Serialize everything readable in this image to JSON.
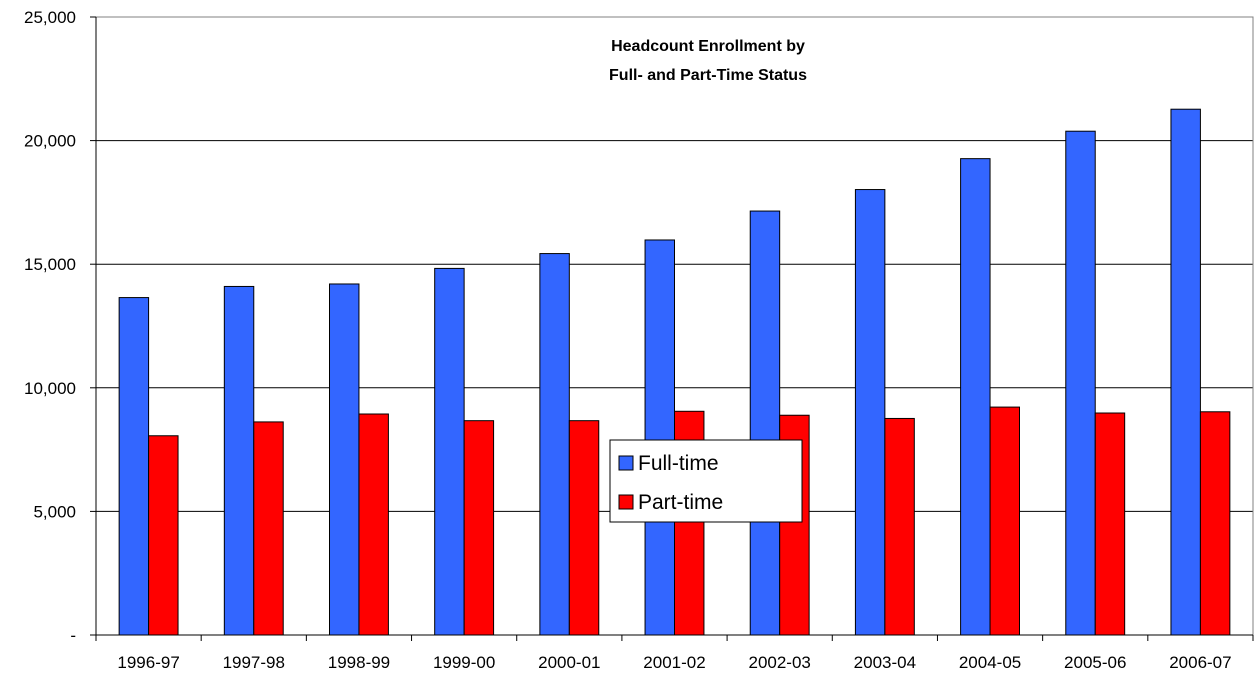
{
  "chart_data": {
    "type": "bar",
    "title": "Headcount Enrollment by",
    "subtitle": "Full- and Part-Time Status",
    "xlabel": "",
    "ylabel": "",
    "categories": [
      "1996-97",
      "1997-98",
      "1998-99",
      "1999-00",
      "2000-01",
      "2001-02",
      "2002-03",
      "2003-04",
      "2004-05",
      "2005-06",
      "2006-07"
    ],
    "series": [
      {
        "name": "Full-time",
        "color": "#3366ff",
        "values": [
          13650,
          14100,
          14200,
          14830,
          15430,
          15980,
          17150,
          18020,
          19270,
          20380,
          21270
        ]
      },
      {
        "name": "Part-time",
        "color": "#ff0000",
        "values": [
          8060,
          8620,
          8940,
          8670,
          8670,
          9050,
          8890,
          8760,
          9220,
          8980,
          9030
        ]
      }
    ],
    "ylim": [
      0,
      25000
    ],
    "yticks": [
      0,
      5000,
      10000,
      15000,
      20000,
      25000
    ],
    "ytick_labels": [
      "-",
      "5,000",
      "10,000",
      "15,000",
      "20,000",
      "25,000"
    ],
    "grid": true,
    "legend_position": "center"
  }
}
